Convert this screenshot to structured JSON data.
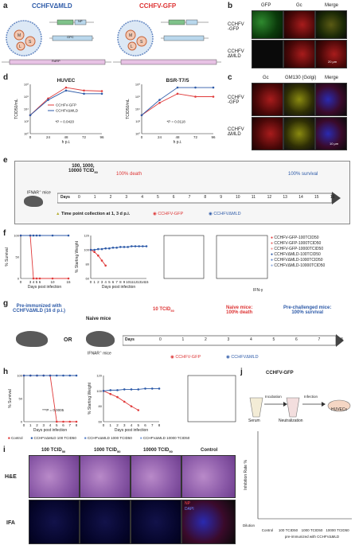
{
  "panels": {
    "a": {
      "label": "a",
      "title_left": "CCHFVΔMLD",
      "title_right": "CCHFV-GFP",
      "genes": {
        "S": "S",
        "M": "M",
        "L": "L",
        "Gn": "Gn",
        "Gc": "Gc",
        "NP": "NP",
        "GPC": "GPC",
        "RdRP": "RdRP"
      }
    },
    "b": {
      "label": "b",
      "cols": [
        "GFP",
        "Gc",
        "Merge"
      ],
      "rows": [
        "CCHFV\n-GFP",
        "CCHFV\nΔMLD"
      ],
      "scale": "20 μm"
    },
    "c": {
      "label": "c",
      "cols": [
        "Gc",
        "GM130 (Golgi)",
        "Merge"
      ],
      "rows": [
        "CCHFV\n-GFP",
        "CCHFV\nΔMLD"
      ],
      "scale": "10 μm"
    },
    "d": {
      "label": "d"
    },
    "e": {
      "label": "e",
      "dose": "100, 1000,\n10000 TCID",
      "dose_sub": "50",
      "death": "100% death",
      "survival": "100% survival",
      "mice": "IFNAR",
      "timepoint": "Time point collection at 1, 3 d p.i.",
      "legend_gfp": "CCHFV-GFP",
      "legend_mld": "CCHFVΔMLD",
      "days_label": "Days",
      "days": [
        "0",
        "1",
        "2",
        "3",
        "4",
        "5",
        "6",
        "7",
        "8",
        "9",
        "10",
        "11",
        "12",
        "13",
        "14",
        "15",
        "16"
      ]
    },
    "f": {
      "label": "f",
      "legend": [
        "CCHFV-GFP-100TCID50",
        "CCHFV-GFP-1000TCID50",
        "CCHFV-GFP-10000TCID50",
        "CCHFVΔMLD-100TCID50",
        "CCHFVΔMLD-1000TCID50",
        "CCHFVΔMLD-10000TCID50"
      ],
      "ifn": "IFN-γ"
    },
    "g": {
      "label": "g",
      "pre": "Pre-immunized with\nCCHFVΔMLD (16 d p.i.)",
      "or": "OR",
      "naive": "Naive mice",
      "ifnar": "IFNAR",
      "dose": "10 TCID",
      "dose_sub": "50",
      "naive_death": "Naive mice:\n100% death",
      "pre_survival": "Pre-challenged mice:\n100% survival",
      "days_label": "Days",
      "days": [
        "0",
        "1",
        "2",
        "3",
        "4",
        "5",
        "6",
        "7",
        "8"
      ],
      "legend_gfp": "CCHFV-GFP",
      "legend_mld": "CCHFVΔMLD"
    },
    "h": {
      "label": "h",
      "legend": [
        "Control",
        "CCHFVΔMLD 100 TCID50",
        "CCHFVΔMLD 1000 TCID50",
        "CCHFVΔMLD 10000 TCID50"
      ]
    },
    "i": {
      "label": "i",
      "cols": [
        "100 TCID",
        "1000 TCID",
        "10000 TCID",
        "Control"
      ],
      "col_sub": "50",
      "rows": [
        "H&E",
        "IFA"
      ],
      "ifa_legend": [
        "NP",
        "DAPI"
      ]
    },
    "j": {
      "label": "j",
      "virus": "CCHFV-GFP",
      "steps": [
        "Serum",
        "Neutralization",
        "HUVECs"
      ],
      "arrows": [
        "Incubation",
        "Infection"
      ],
      "dilution": "Dilution",
      "groups": [
        "Control",
        "100 TCID50",
        "1000 TCID50",
        "10000 TCID50"
      ],
      "footer": "pre-immunized with CCHFVΔMLD"
    }
  },
  "chart_data": [
    {
      "id": "d-huvec",
      "type": "line",
      "title": "HUVEC",
      "xlabel": "h p.i.",
      "ylabel": "TCID50/mL",
      "x": [
        0,
        24,
        48,
        72,
        96
      ],
      "log_y": true,
      "ylim": [
        1,
        100000000
      ],
      "series": [
        {
          "name": "CCHFV-GFP",
          "color": "#e03b3b",
          "values": [
            1000,
            500000,
            30000000,
            10000000,
            8000000
          ]
        },
        {
          "name": "CCHFVΔMLD",
          "color": "#2d5aa8",
          "values": [
            1000,
            300000,
            10000000,
            3000000,
            3000000
          ]
        }
      ],
      "annotation": "*P = 0.0420"
    },
    {
      "id": "d-bsr",
      "type": "line",
      "title": "BSR-T7/5",
      "xlabel": "h p.i.",
      "ylabel": "TCID50/mL",
      "x": [
        0,
        24,
        48,
        72,
        96
      ],
      "log_y": true,
      "ylim": [
        1,
        100000000
      ],
      "series": [
        {
          "name": "CCHFV-GFP",
          "color": "#e03b3b",
          "values": [
            1000,
            100000,
            3000000,
            1000000,
            1000000
          ]
        },
        {
          "name": "CCHFVΔMLD",
          "color": "#2d5aa8",
          "values": [
            1000,
            300000,
            30000000,
            30000000,
            30000000
          ]
        }
      ],
      "annotation": "*P = 0.0118"
    },
    {
      "id": "f-survival",
      "type": "line",
      "xlabel": "Days post infection",
      "ylabel": "% Survival",
      "x": [
        0,
        3,
        4,
        5,
        6,
        10,
        15
      ],
      "ylim": [
        0,
        100
      ],
      "series": [
        {
          "name": "CCHFV-GFP",
          "color": "#e03b3b",
          "values": [
            100,
            100,
            0,
            0,
            0,
            0,
            0
          ]
        },
        {
          "name": "CCHFVΔMLD",
          "color": "#2d5aa8",
          "values": [
            100,
            100,
            100,
            100,
            100,
            100,
            100
          ]
        }
      ]
    },
    {
      "id": "f-weight",
      "type": "line",
      "xlabel": "Days post infection",
      "ylabel": "% Starting Weight",
      "x": [
        0,
        1,
        2,
        3,
        4,
        5,
        6,
        7,
        8,
        9,
        10,
        11,
        12,
        13,
        14,
        15
      ],
      "ylim": [
        60,
        120
      ],
      "series": [
        {
          "name": "CCHFV-GFP",
          "color": "#e03b3b",
          "values": [
            100,
            97,
            92,
            85,
            78,
            null,
            null,
            null,
            null,
            null,
            null,
            null,
            null,
            null,
            null,
            null
          ]
        },
        {
          "name": "CCHFVΔMLD",
          "color": "#2d5aa8",
          "values": [
            100,
            100,
            101,
            101,
            102,
            102,
            103,
            103,
            104,
            104,
            104,
            105,
            105,
            105,
            105,
            105
          ]
        }
      ]
    },
    {
      "id": "h-survival",
      "type": "line",
      "xlabel": "Days post infection",
      "ylabel": "% Survival",
      "x": [
        0,
        1,
        2,
        3,
        4,
        5,
        6,
        7,
        8
      ],
      "ylim": [
        0,
        100
      ],
      "annotation": "***P = 0.0005",
      "series": [
        {
          "name": "Control",
          "color": "#e03b3b",
          "values": [
            100,
            100,
            100,
            100,
            100,
            0,
            0,
            0,
            0
          ]
        },
        {
          "name": "CCHFVΔMLD",
          "color": "#2d5aa8",
          "values": [
            100,
            100,
            100,
            100,
            100,
            100,
            100,
            100,
            100
          ]
        }
      ]
    },
    {
      "id": "h-weight",
      "type": "line",
      "xlabel": "Days post infection",
      "ylabel": "% Starting Weight",
      "x": [
        0,
        1,
        2,
        3,
        4,
        5,
        6,
        7,
        8
      ],
      "ylim": [
        60,
        120
      ],
      "series": [
        {
          "name": "Control",
          "color": "#e03b3b",
          "values": [
            100,
            96,
            92,
            86,
            80,
            75,
            null,
            null,
            null
          ]
        },
        {
          "name": "CCHFVΔMLD",
          "color": "#2d5aa8",
          "values": [
            100,
            101,
            101,
            102,
            102,
            102,
            103,
            103,
            103
          ]
        }
      ]
    }
  ]
}
